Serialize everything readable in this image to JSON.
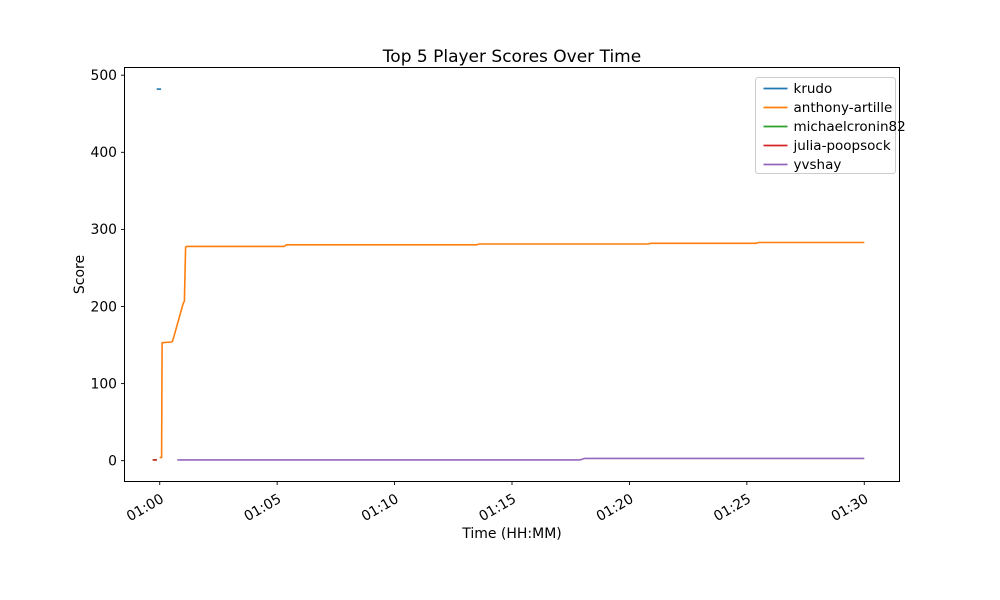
{
  "figure": {
    "background": "#ffffff",
    "axes_edge_color": "#000000",
    "legend_border_color": "#cccccc"
  },
  "chart_data": {
    "type": "line",
    "title": "Top 5 Player Scores Over Time",
    "xlabel": "Time (HH:MM)",
    "ylabel": "Score",
    "grid": false,
    "legend_position": "upper right",
    "x_unit": "minutes after 01:00",
    "xlim": [
      -1.5,
      31.5
    ],
    "ylim": [
      -27,
      510
    ],
    "x_ticks": [
      {
        "t": 0,
        "label": "01:00"
      },
      {
        "t": 5,
        "label": "01:05"
      },
      {
        "t": 10,
        "label": "01:10"
      },
      {
        "t": 15,
        "label": "01:15"
      },
      {
        "t": 20,
        "label": "01:20"
      },
      {
        "t": 25,
        "label": "01:25"
      },
      {
        "t": 30,
        "label": "01:30"
      }
    ],
    "x_tick_rotation_deg": -30,
    "y_ticks": [
      0,
      100,
      200,
      300,
      400,
      500
    ],
    "series": [
      {
        "name": "krudo",
        "color": "#1f77b4",
        "points": [
          [
            -0.13,
            482
          ],
          [
            0.06,
            482
          ]
        ]
      },
      {
        "name": "anthony-artille",
        "color": "#ff7f0e",
        "points": [
          [
            0,
            4
          ],
          [
            0.08,
            4
          ],
          [
            0.1,
            153
          ],
          [
            0.5,
            154
          ],
          [
            0.55,
            155
          ],
          [
            1.0,
            204
          ],
          [
            1.05,
            207
          ],
          [
            1.1,
            277
          ],
          [
            1.15,
            278
          ],
          [
            5.3,
            278
          ],
          [
            5.4,
            280
          ],
          [
            13.5,
            280
          ],
          [
            13.6,
            281
          ],
          [
            20.8,
            281
          ],
          [
            20.9,
            282
          ],
          [
            25.4,
            282
          ],
          [
            25.5,
            283
          ],
          [
            30,
            283
          ]
        ]
      },
      {
        "name": "michaelcronin82",
        "color": "#2ca02c",
        "points": [
          [
            -0.3,
            1
          ],
          [
            -0.12,
            1
          ]
        ]
      },
      {
        "name": "julia-poopsock",
        "color": "#d62728",
        "points": [
          [
            -0.3,
            1
          ],
          [
            -0.12,
            1
          ]
        ]
      },
      {
        "name": "yvshay",
        "color": "#9467bd",
        "points": [
          [
            0.75,
            1
          ],
          [
            17.9,
            1
          ],
          [
            18.1,
            3
          ],
          [
            30,
            3
          ]
        ]
      }
    ]
  }
}
